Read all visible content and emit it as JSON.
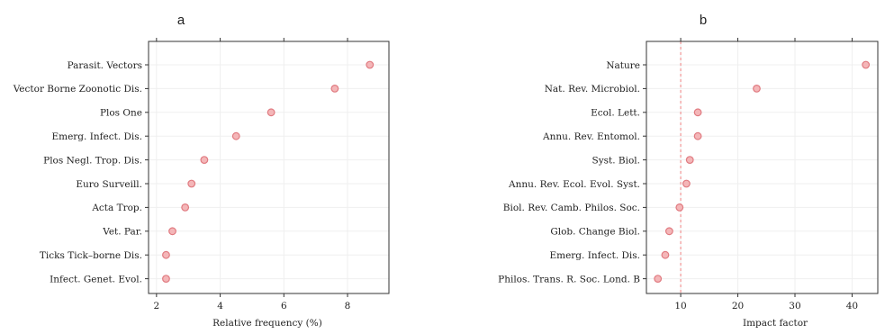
{
  "chart_data": [
    {
      "type": "scatter",
      "panel_label": "a",
      "title": "",
      "xlabel": "Relative frequency (%)",
      "ylabel": "",
      "xlim": [
        1.75,
        9.3
      ],
      "xticks": [
        2,
        4,
        6,
        8
      ],
      "grid": true,
      "categories": [
        "Parasit. Vectors",
        "Vector Borne Zoonotic Dis.",
        "Plos One",
        "Emerg. Infect. Dis.",
        "Plos Negl. Trop. Dis.",
        "Euro Surveill.",
        "Acta Trop.",
        "Vet. Par.",
        "Ticks Tick–borne Dis.",
        "Infect. Genet. Evol."
      ],
      "values": [
        8.7,
        7.6,
        5.6,
        4.5,
        3.5,
        3.1,
        2.9,
        2.5,
        2.3,
        2.3
      ],
      "point_color": "#f4b6b8"
    },
    {
      "type": "scatter",
      "panel_label": "b",
      "title": "",
      "xlabel": "Impact factor",
      "ylabel": "",
      "xlim": [
        4.0,
        44.5
      ],
      "xticks": [
        10,
        20,
        30,
        40
      ],
      "grid": true,
      "reference_line_x": 10,
      "reference_line_color": "#f08080",
      "categories": [
        "Nature",
        "Nat. Rev. Microbiol.",
        "Ecol. Lett.",
        "Annu. Rev. Entomol.",
        "Syst. Biol.",
        "Annu. Rev. Ecol. Evol. Syst.",
        "Biol. Rev. Camb. Philos. Soc.",
        "Glob. Change Biol.",
        "Emerg. Infect. Dis.",
        "Philos. Trans. R. Soc. Lond. B"
      ],
      "values": [
        42.4,
        23.3,
        13.0,
        13.0,
        11.6,
        11.0,
        9.8,
        8.0,
        7.3,
        6.0
      ],
      "point_color": "#f4b6b8"
    }
  ]
}
